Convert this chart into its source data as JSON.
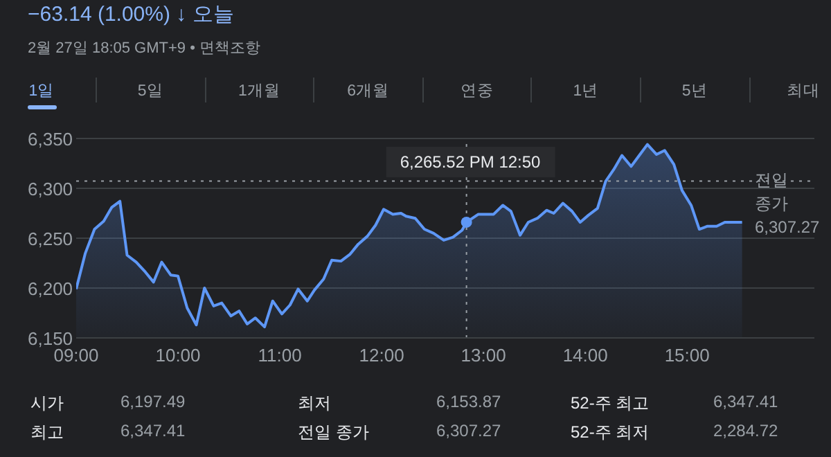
{
  "chart_data": {
    "type": "area",
    "title": "−63.14 (1.00%) ↓ 오늘",
    "subtitle": "2월 27일 18:05 GMT+9 • 면책조항",
    "x": [
      9.0,
      9.09,
      9.18,
      9.27,
      9.35,
      9.43,
      9.5,
      9.59,
      9.68,
      9.76,
      9.84,
      9.93,
      10.0,
      10.09,
      10.18,
      10.26,
      10.35,
      10.43,
      10.52,
      10.6,
      10.68,
      10.76,
      10.85,
      10.93,
      11.02,
      11.1,
      11.18,
      11.27,
      11.34,
      11.43,
      11.51,
      11.6,
      11.69,
      11.77,
      11.86,
      11.94,
      12.02,
      12.11,
      12.19,
      12.24,
      12.33,
      12.42,
      12.51,
      12.61,
      12.7,
      12.79,
      12.8333333,
      12.95,
      13.1,
      13.19,
      13.27,
      13.36,
      13.44,
      13.53,
      13.62,
      13.69,
      13.78,
      13.87,
      13.95,
      14.03,
      14.12,
      14.2,
      14.28,
      14.36,
      14.45,
      14.53,
      14.61,
      14.7,
      14.78,
      14.87,
      14.95,
      15.04,
      15.12,
      15.2,
      15.29,
      15.37,
      15.46,
      15.54
    ],
    "series": [
      {
        "color": "#5e97f6",
        "values": [
          6199,
          6235,
          6259,
          6267,
          6281,
          6287,
          6233,
          6226,
          6216,
          6206,
          6226,
          6213,
          6212,
          6180,
          6163,
          6200,
          6182,
          6185,
          6172,
          6177,
          6164,
          6170,
          6161,
          6187,
          6174,
          6183,
          6199,
          6187,
          6198,
          6209,
          6228,
          6227,
          6234,
          6244,
          6252,
          6263,
          6279,
          6274,
          6275,
          6272,
          6270,
          6259,
          6255,
          6248,
          6251,
          6258,
          6266,
          6274,
          6274,
          6283,
          6277,
          6253,
          6266,
          6270,
          6278,
          6275,
          6285,
          6277,
          6266,
          6273,
          6280,
          6307,
          6319,
          6333,
          6322,
          6333,
          6344,
          6334,
          6338,
          6324,
          6298,
          6283,
          6259,
          6262,
          6262,
          6266,
          6266,
          6266
        ]
      }
    ],
    "xlim": [
      9,
      16.25
    ],
    "xticks": [
      {
        "value": 9,
        "label": "09:00"
      },
      {
        "value": 10,
        "label": "10:00"
      },
      {
        "value": 11,
        "label": "11:00"
      },
      {
        "value": 12,
        "label": "12:00"
      },
      {
        "value": 13,
        "label": "13:00"
      },
      {
        "value": 14,
        "label": "14:00"
      },
      {
        "value": 15,
        "label": "15:00"
      }
    ],
    "ylim": [
      6150,
      6350
    ],
    "yticks": [
      {
        "value": 6150,
        "label": "6,150"
      },
      {
        "value": 6200,
        "label": "6,200"
      },
      {
        "value": 6250,
        "label": "6,250"
      },
      {
        "value": 6300,
        "label": "6,300"
      },
      {
        "value": 6350,
        "label": "6,350"
      }
    ],
    "grid": "y",
    "marker": "none",
    "line_style": "solid",
    "ref_lines": [
      {
        "axis": "y",
        "value": 6307.27,
        "label": "전일 종가 6,307.27",
        "color": "#9aa0a6",
        "line_style": "dotted"
      },
      {
        "axis": "x",
        "value": 12.8333333,
        "color": "#9aa0a6",
        "line_style": "dotted"
      }
    ],
    "annotations": [
      "6,265.52 PM 12:50",
      "1일",
      "5일",
      "1개월",
      "6개월",
      "연중",
      "1년",
      "5년",
      "최대",
      "시가",
      "6,197.49",
      "최저",
      "6,153.87",
      "52-주 최고",
      "6,347.41",
      "최고",
      "6,347.41",
      "전일 종가",
      "6,307.27",
      "52-주 최저",
      "2,284.72"
    ]
  }
}
